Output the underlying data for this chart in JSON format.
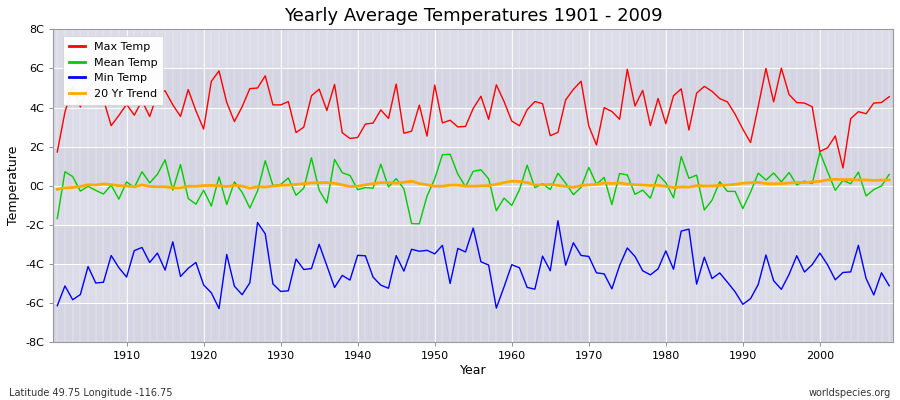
{
  "title": "Yearly Average Temperatures 1901 - 2009",
  "xlabel": "Year",
  "ylabel": "Temperature",
  "year_start": 1901,
  "year_end": 2009,
  "ylim": [
    -8,
    8
  ],
  "yticks": [
    -8,
    -6,
    -4,
    -2,
    0,
    2,
    4,
    6,
    8
  ],
  "ytick_labels": [
    "-8C",
    "-6C",
    "-4C",
    "-2C",
    "0C",
    "2C",
    "4C",
    "6C",
    "8C"
  ],
  "colors": {
    "max": "#ff0000",
    "mean": "#00cc00",
    "min": "#0000ff",
    "trend": "#ffaa00",
    "background_outer": "#ffffff",
    "background_plot": "#dcdce8",
    "grid_major": "#ffffff",
    "grid_minor": "#e8e8f0"
  },
  "legend_labels": [
    "Max Temp",
    "Mean Temp",
    "Min Temp",
    "20 Yr Trend"
  ],
  "bottom_left": "Latitude 49.75 Longitude -116.75",
  "bottom_right": "worldspecies.org",
  "linewidth": 1.0,
  "trend_linewidth": 2.0
}
